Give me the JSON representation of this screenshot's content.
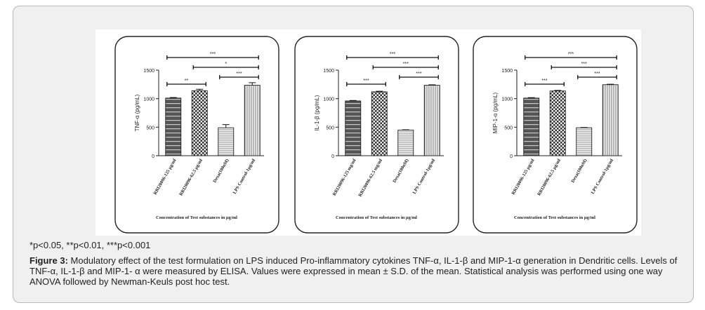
{
  "footnote": "*p<0.05, **p<0.01, ***p<0.001",
  "caption": {
    "label": "Figure 3:",
    "text": " Modulatory effect of the test formulation on LPS induced Pro-inflammatory cytokines TNF-α, IL-1-β and MIP-1-α generation in Dendritic cells. Levels of TNF-α, IL-1-β and MIP-1- α were measured by ELISA. Values were expressed in mean ± S.D. of the mean. Statistical analysis was performed using one way ANOVA followed by Newman-Keuls post hoc test."
  },
  "colors": {
    "bar_fill": "#8a8a8a",
    "bar_stroke": "#222222",
    "frame_bg": "#f0f0f0"
  },
  "chart_data": [
    {
      "type": "bar",
      "ylabel": "TNF-α (pg/mL)",
      "xlabel": "Concentration of Test substances in µg/ml",
      "categories": [
        "RRI20096-125 µg/ml",
        "RRI20096-62.5 µg/ml",
        "Dexa(100nM)",
        "LPS Control-1µg/ml"
      ],
      "values": [
        1010,
        1140,
        490,
        1235
      ],
      "errors": [
        10,
        25,
        55,
        45
      ],
      "patterns": [
        "hstripe",
        "check",
        "hline",
        "vline"
      ],
      "ylim": [
        0,
        1500
      ],
      "yticks": [
        "0",
        "500",
        "1000",
        "1500"
      ],
      "significance": [
        {
          "from": 0,
          "to": 1,
          "label": "**"
        },
        {
          "from": 2,
          "to": 3,
          "label": "***"
        },
        {
          "from": 1,
          "to": 3,
          "label": "*"
        },
        {
          "from": 0,
          "to": 3,
          "label": "***"
        }
      ]
    },
    {
      "type": "bar",
      "ylabel": "IL-1-β (pg/mL)",
      "xlabel": "Concentration of Test substances in µg/ml",
      "categories": [
        "RRI20096-125 mg/ml",
        "RRI20096-62.5 mg/ml",
        "Dexa(100nM)",
        "LPS Control-1µg/ml"
      ],
      "values": [
        960,
        1120,
        450,
        1235
      ],
      "errors": [
        8,
        10,
        5,
        8
      ],
      "patterns": [
        "hstripe",
        "check",
        "hline",
        "vline"
      ],
      "ylim": [
        0,
        1500
      ],
      "yticks": [
        "0",
        "500",
        "1000",
        "1500"
      ],
      "significance": [
        {
          "from": 0,
          "to": 1,
          "label": "***"
        },
        {
          "from": 2,
          "to": 3,
          "label": "***"
        },
        {
          "from": 1,
          "to": 3,
          "label": "***"
        },
        {
          "from": 0,
          "to": 3,
          "label": "***"
        }
      ]
    },
    {
      "type": "bar",
      "ylabel": "MIP-1-α (pg/mL)",
      "xlabel": "Concentration of Test substances in µg/ml",
      "categories": [
        "RRI20096-125 µg/ml",
        "RRI20096-62.5 µg/ml",
        "Dexa(100nM)",
        "LPS Control-1µg/ml"
      ],
      "values": [
        1010,
        1135,
        490,
        1245
      ],
      "errors": [
        8,
        10,
        5,
        8
      ],
      "patterns": [
        "hstripe",
        "check",
        "hline",
        "vline"
      ],
      "ylim": [
        0,
        1500
      ],
      "yticks": [
        "0",
        "500",
        "1000",
        "1500"
      ],
      "significance": [
        {
          "from": 0,
          "to": 1,
          "label": "***"
        },
        {
          "from": 2,
          "to": 3,
          "label": "***"
        },
        {
          "from": 1,
          "to": 3,
          "label": "***"
        },
        {
          "from": 0,
          "to": 3,
          "label": "***"
        }
      ]
    }
  ]
}
